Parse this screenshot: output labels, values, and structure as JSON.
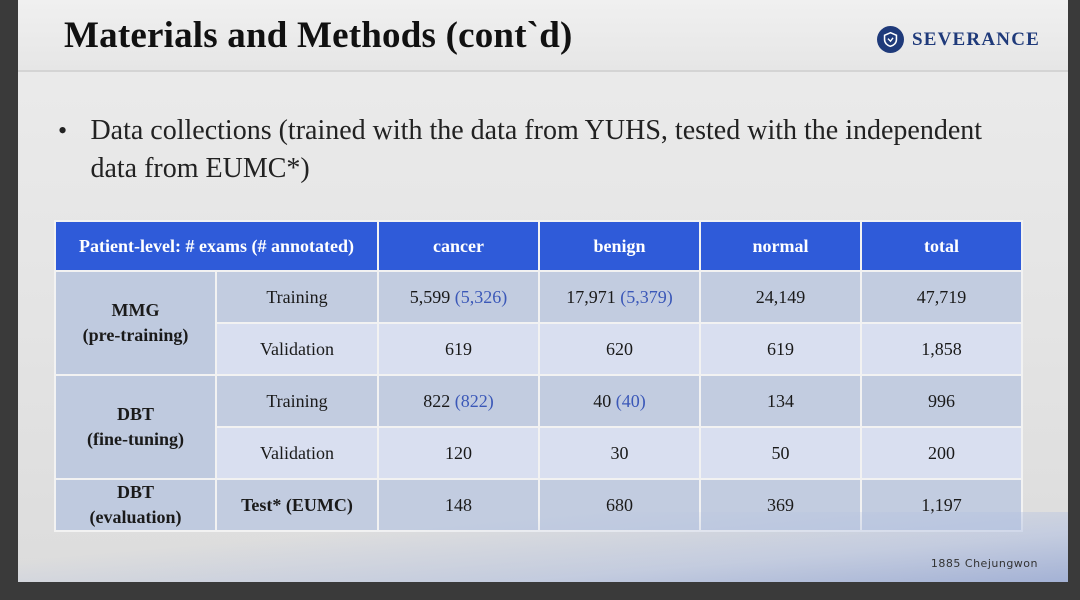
{
  "slide": {
    "title": "Materials and Methods (cont`d)",
    "logo_text": "SEVERANCE",
    "logo_icon": "shield-emblem-icon",
    "bullet_symbol": "•",
    "bullet_text": "Data collections (trained with the data from YUHS, tested with the independent data from EUMC*)",
    "footer": "1885 Chejungwon"
  },
  "table": {
    "headers": [
      "Patient-level: # exams (# annotated)",
      "cancer",
      "benign",
      "normal",
      "total"
    ],
    "groups": [
      {
        "line1": "MMG",
        "line2": "(pre-training)"
      },
      {
        "line1": "DBT",
        "line2": "(fine-tuning)"
      },
      {
        "line1": "DBT",
        "line2": "(evaluation)"
      }
    ],
    "rows": [
      {
        "split": "Training",
        "cancer": "5,599",
        "cancer_annot": "(5,326)",
        "benign": "17,971",
        "benign_annot": "(5,379)",
        "normal": "24,149",
        "total": "47,719"
      },
      {
        "split": "Validation",
        "cancer": "619",
        "cancer_annot": "",
        "benign": "620",
        "benign_annot": "",
        "normal": "619",
        "total": "1,858"
      },
      {
        "split": "Training",
        "cancer": "822",
        "cancer_annot": "(822)",
        "benign": "40",
        "benign_annot": "(40)",
        "normal": "134",
        "total": "996"
      },
      {
        "split": "Validation",
        "cancer": "120",
        "cancer_annot": "",
        "benign": "30",
        "benign_annot": "",
        "normal": "50",
        "total": "200"
      },
      {
        "split": "Test* (EUMC)",
        "cancer": "148",
        "cancer_annot": "",
        "benign": "680",
        "benign_annot": "",
        "normal": "369",
        "total": "1,197"
      }
    ]
  },
  "colors": {
    "header_blue": "#2f5bd9",
    "row_dark": "#c2cce0",
    "row_light": "#d9dff0",
    "annotated_blue": "#3b58b8",
    "logo_navy": "#1f3a7a"
  }
}
